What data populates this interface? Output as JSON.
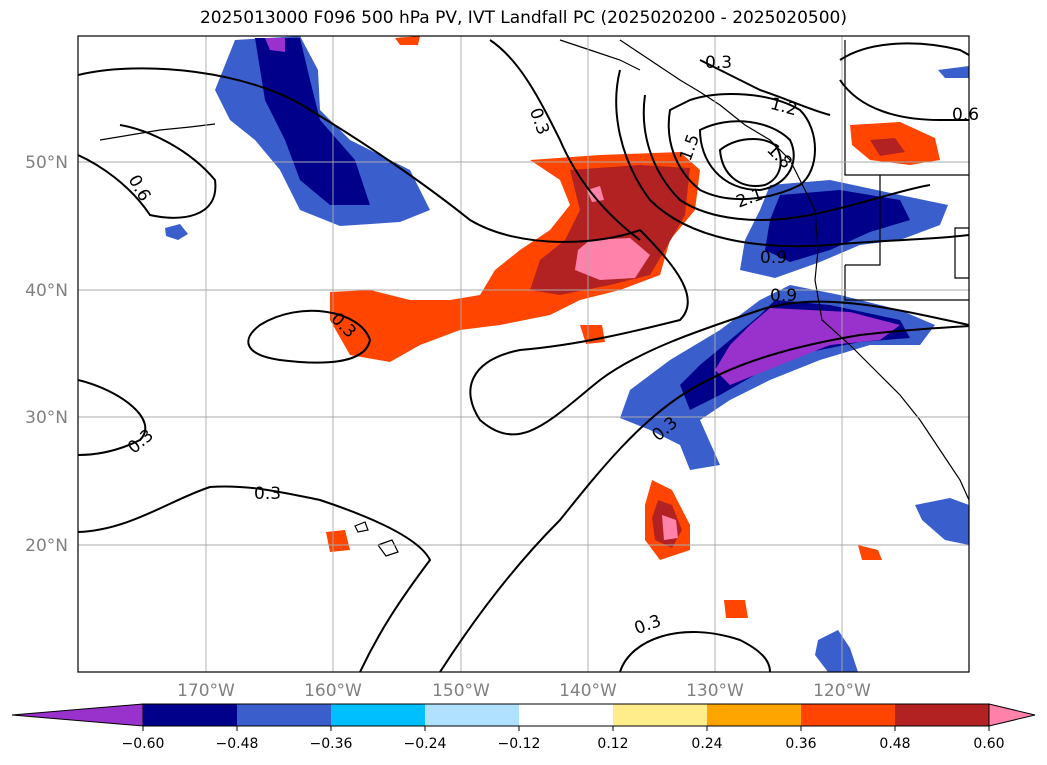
{
  "title": "2025013000 F096 500 hPa PV, IVT Landfall PC (2025020200 - 2025020500)",
  "map": {
    "lat_labels": [
      "50°N",
      "40°N",
      "30°N",
      "20°N"
    ],
    "lon_labels": [
      "170°W",
      "160°W",
      "150°W",
      "140°W",
      "130°W",
      "120°W"
    ],
    "contour_labels": [
      "0.3",
      "0.6",
      "0.3",
      "0.3",
      "0.3",
      "0.3",
      "0.3",
      "1.2",
      "1.5",
      "1.8",
      "2.1",
      "0.9",
      "0.9",
      "0.6",
      "0.3"
    ]
  },
  "colorbar": {
    "ticks": [
      "−0.60",
      "−0.48",
      "−0.36",
      "−0.24",
      "−0.12",
      "0.12",
      "0.24",
      "0.36",
      "0.48",
      "0.60"
    ],
    "colors": [
      "#9932cc",
      "#00008b",
      "#3a5fcd",
      "#00bfff",
      "#b0e2ff",
      "#ffffff",
      "#ffec8b",
      "#ffa500",
      "#ff4500",
      "#b22222",
      "#ff82ab",
      "#ff82ab"
    ]
  }
}
